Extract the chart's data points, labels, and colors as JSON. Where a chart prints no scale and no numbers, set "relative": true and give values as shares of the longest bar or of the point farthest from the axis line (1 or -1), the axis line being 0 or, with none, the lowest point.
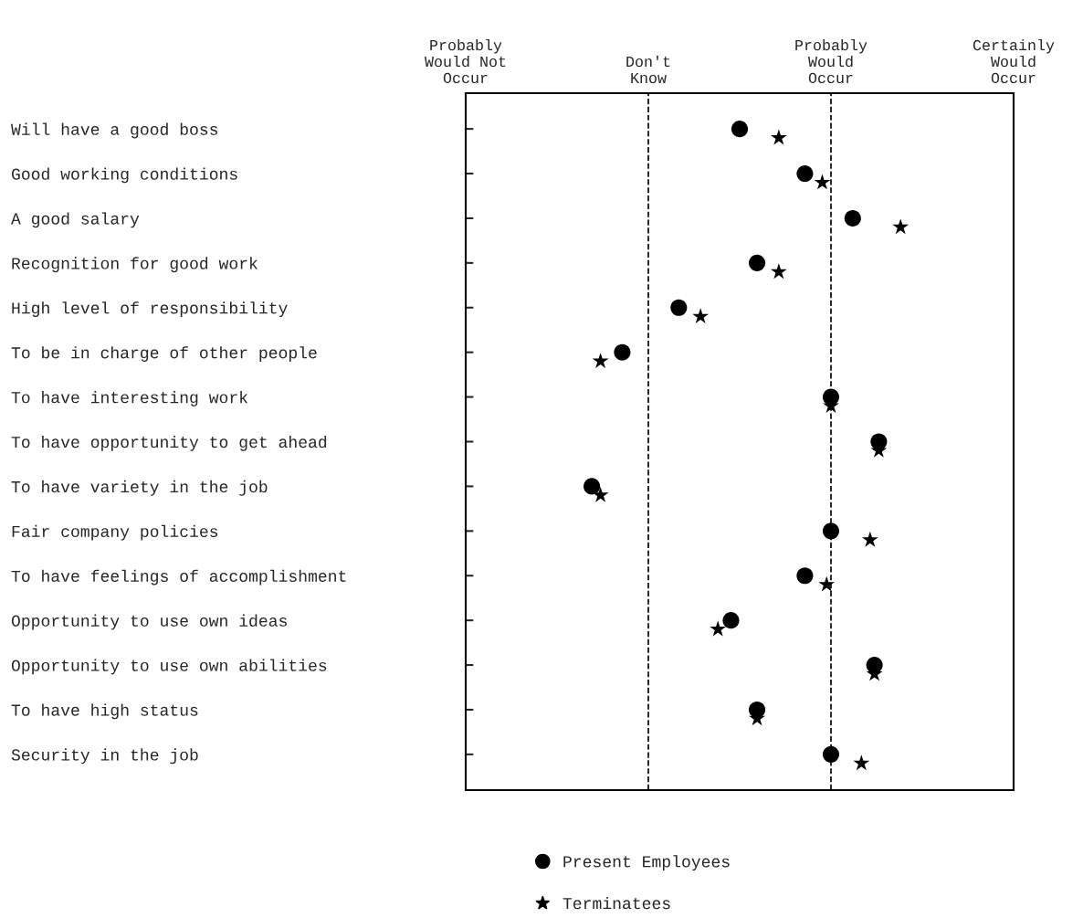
{
  "chart_data": {
    "type": "scatter",
    "orientation": "horizontal",
    "relative": true,
    "categories": [
      "Will have a good boss",
      "Good working conditions",
      "A good salary",
      "Recognition for good work",
      "High level of responsibility",
      "To be in charge of other people",
      "To have interesting work",
      "To have opportunity to get ahead",
      "To have variety in the job",
      "Fair company policies",
      "To have feelings of accomplishment",
      "Opportunity to use own ideas",
      "Opportunity to use own abilities",
      "To have high status",
      "Security in the job"
    ],
    "series": [
      {
        "name": "Present Employees",
        "color": "#000000",
        "marker": "circle",
        "values": [
          0.63,
          0.78,
          0.89,
          0.67,
          0.49,
          0.36,
          0.84,
          0.95,
          0.29,
          0.84,
          0.78,
          0.61,
          0.94,
          0.67,
          0.84
        ]
      },
      {
        "name": "Terminatees",
        "color": "#000000",
        "marker": "star",
        "values": [
          0.72,
          0.82,
          1.0,
          0.72,
          0.54,
          0.31,
          0.84,
          0.95,
          0.31,
          0.93,
          0.83,
          0.58,
          0.94,
          0.67,
          0.91
        ]
      }
    ],
    "annotations": [
      "Probably\nWould Not\nOccur",
      "Don't\nKnow",
      "Probably\nWould\nOccur",
      "Certainly\nWould\nOccur"
    ],
    "ref_lines": [
      {
        "axis": "x",
        "value": 0.42,
        "label": null,
        "color": "#000000",
        "line_style": "dashed"
      },
      {
        "axis": "x",
        "value": 0.84,
        "label": null,
        "color": "#000000",
        "line_style": "dashed"
      }
    ],
    "grid": false,
    "legend": "bottom"
  }
}
